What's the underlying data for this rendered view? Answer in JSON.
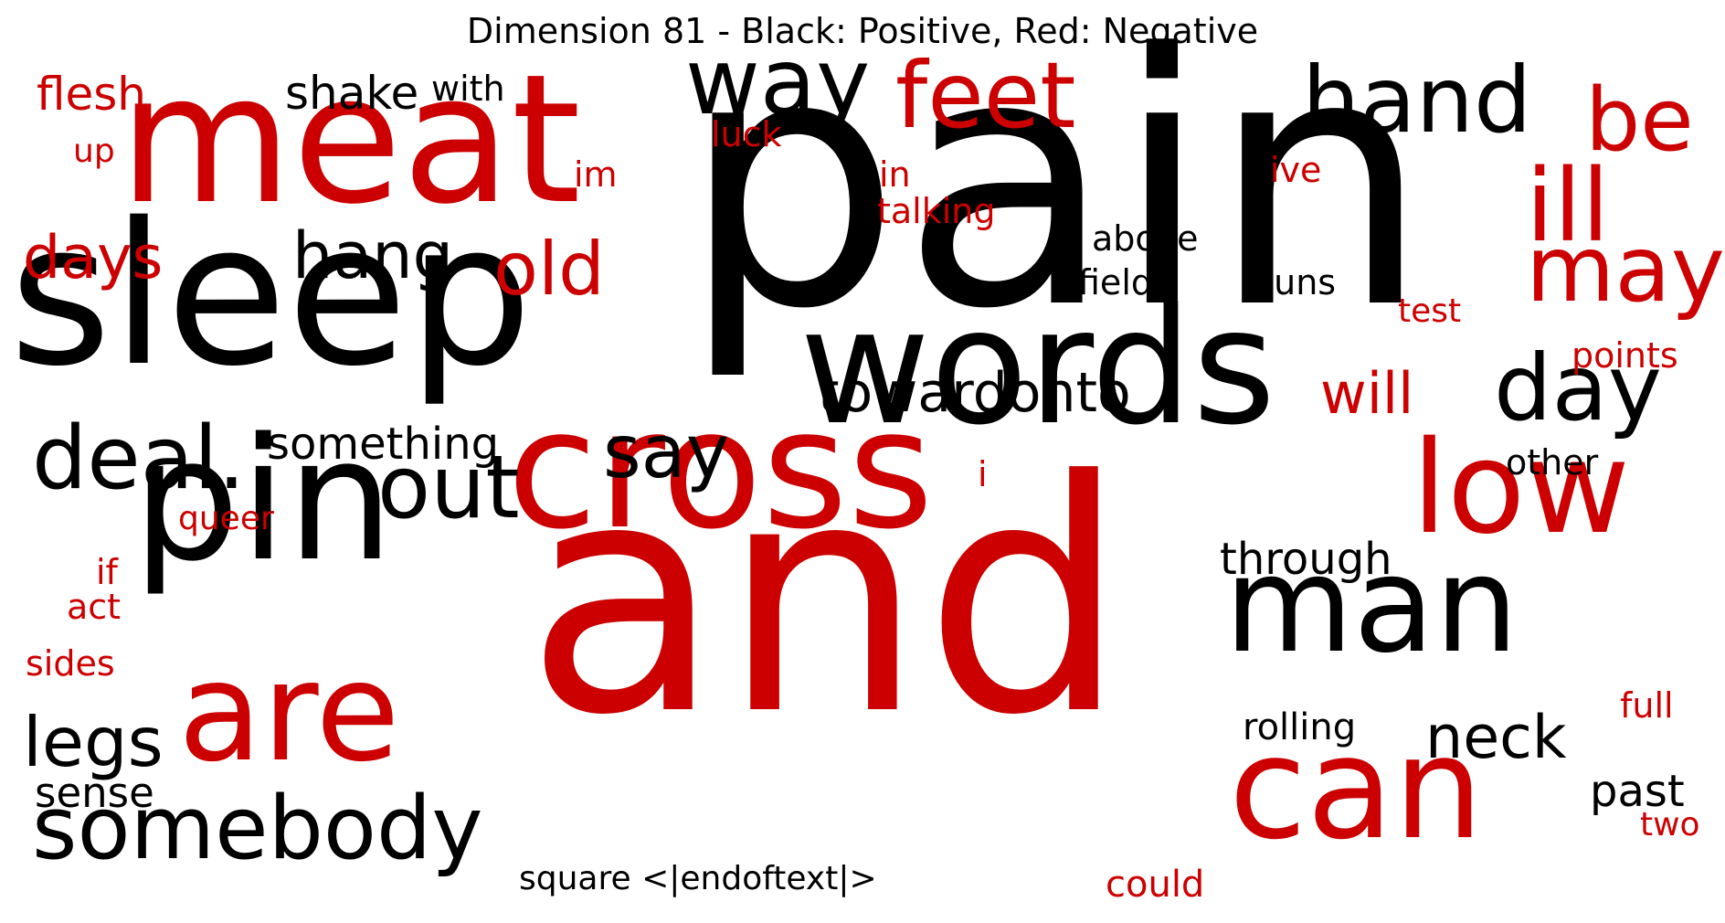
{
  "title": "Dimension 81 - Black: Positive, Red: Negative",
  "colors": {
    "positive": "#000000",
    "negative": "#cc0000"
  },
  "words": [
    {
      "text": "pain",
      "polarity": "positive"
    },
    {
      "text": "and",
      "polarity": "negative"
    },
    {
      "text": "sleep",
      "polarity": "positive"
    },
    {
      "text": "words",
      "polarity": "positive"
    },
    {
      "text": "meat",
      "polarity": "negative"
    },
    {
      "text": "cross",
      "polarity": "negative"
    },
    {
      "text": "pin",
      "polarity": "positive"
    },
    {
      "text": "are",
      "polarity": "negative"
    },
    {
      "text": "man",
      "polarity": "positive"
    },
    {
      "text": "can",
      "polarity": "negative"
    },
    {
      "text": "low",
      "polarity": "negative"
    },
    {
      "text": "feet",
      "polarity": "negative"
    },
    {
      "text": "way",
      "polarity": "positive"
    },
    {
      "text": "hand",
      "polarity": "positive"
    },
    {
      "text": "deal.",
      "polarity": "positive"
    },
    {
      "text": "day",
      "polarity": "positive"
    },
    {
      "text": "out",
      "polarity": "positive"
    },
    {
      "text": "somebody",
      "polarity": "positive"
    },
    {
      "text": "ill",
      "polarity": "negative"
    },
    {
      "text": "be",
      "polarity": "negative"
    },
    {
      "text": "may",
      "polarity": "negative"
    },
    {
      "text": "say",
      "polarity": "positive"
    },
    {
      "text": "old",
      "polarity": "negative"
    },
    {
      "text": "towardonto",
      "polarity": "positive"
    },
    {
      "text": "neck",
      "polarity": "positive"
    },
    {
      "text": "legs",
      "polarity": "positive"
    },
    {
      "text": "hang",
      "polarity": "positive"
    },
    {
      "text": "days",
      "polarity": "negative"
    },
    {
      "text": "will",
      "polarity": "negative"
    },
    {
      "text": "something",
      "polarity": "positive"
    },
    {
      "text": "through",
      "polarity": "positive"
    },
    {
      "text": "square <|endoftext|>",
      "polarity": "positive"
    },
    {
      "text": "past",
      "polarity": "positive"
    },
    {
      "text": "shake",
      "polarity": "positive"
    },
    {
      "text": "flesh",
      "polarity": "negative"
    },
    {
      "text": "sense",
      "polarity": "positive"
    },
    {
      "text": "rolling",
      "polarity": "positive"
    },
    {
      "text": "could",
      "polarity": "negative"
    },
    {
      "text": "above",
      "polarity": "positive"
    },
    {
      "text": "field",
      "polarity": "positive"
    },
    {
      "text": "guns",
      "polarity": "positive"
    },
    {
      "text": "talking",
      "polarity": "negative"
    },
    {
      "text": "luck",
      "polarity": "negative"
    },
    {
      "text": "with",
      "polarity": "positive"
    },
    {
      "text": "other",
      "polarity": "positive"
    },
    {
      "text": "points",
      "polarity": "negative"
    },
    {
      "text": "full",
      "polarity": "negative"
    },
    {
      "text": "two",
      "polarity": "negative"
    },
    {
      "text": "sides",
      "polarity": "negative"
    },
    {
      "text": "act",
      "polarity": "negative"
    },
    {
      "text": "if",
      "polarity": "negative"
    },
    {
      "text": "queer",
      "polarity": "negative"
    },
    {
      "text": "up",
      "polarity": "negative"
    },
    {
      "text": "im",
      "polarity": "negative"
    },
    {
      "text": "in",
      "polarity": "negative"
    },
    {
      "text": "ive",
      "polarity": "negative"
    },
    {
      "text": "test",
      "polarity": "negative"
    },
    {
      "text": "i",
      "polarity": "negative"
    }
  ]
}
